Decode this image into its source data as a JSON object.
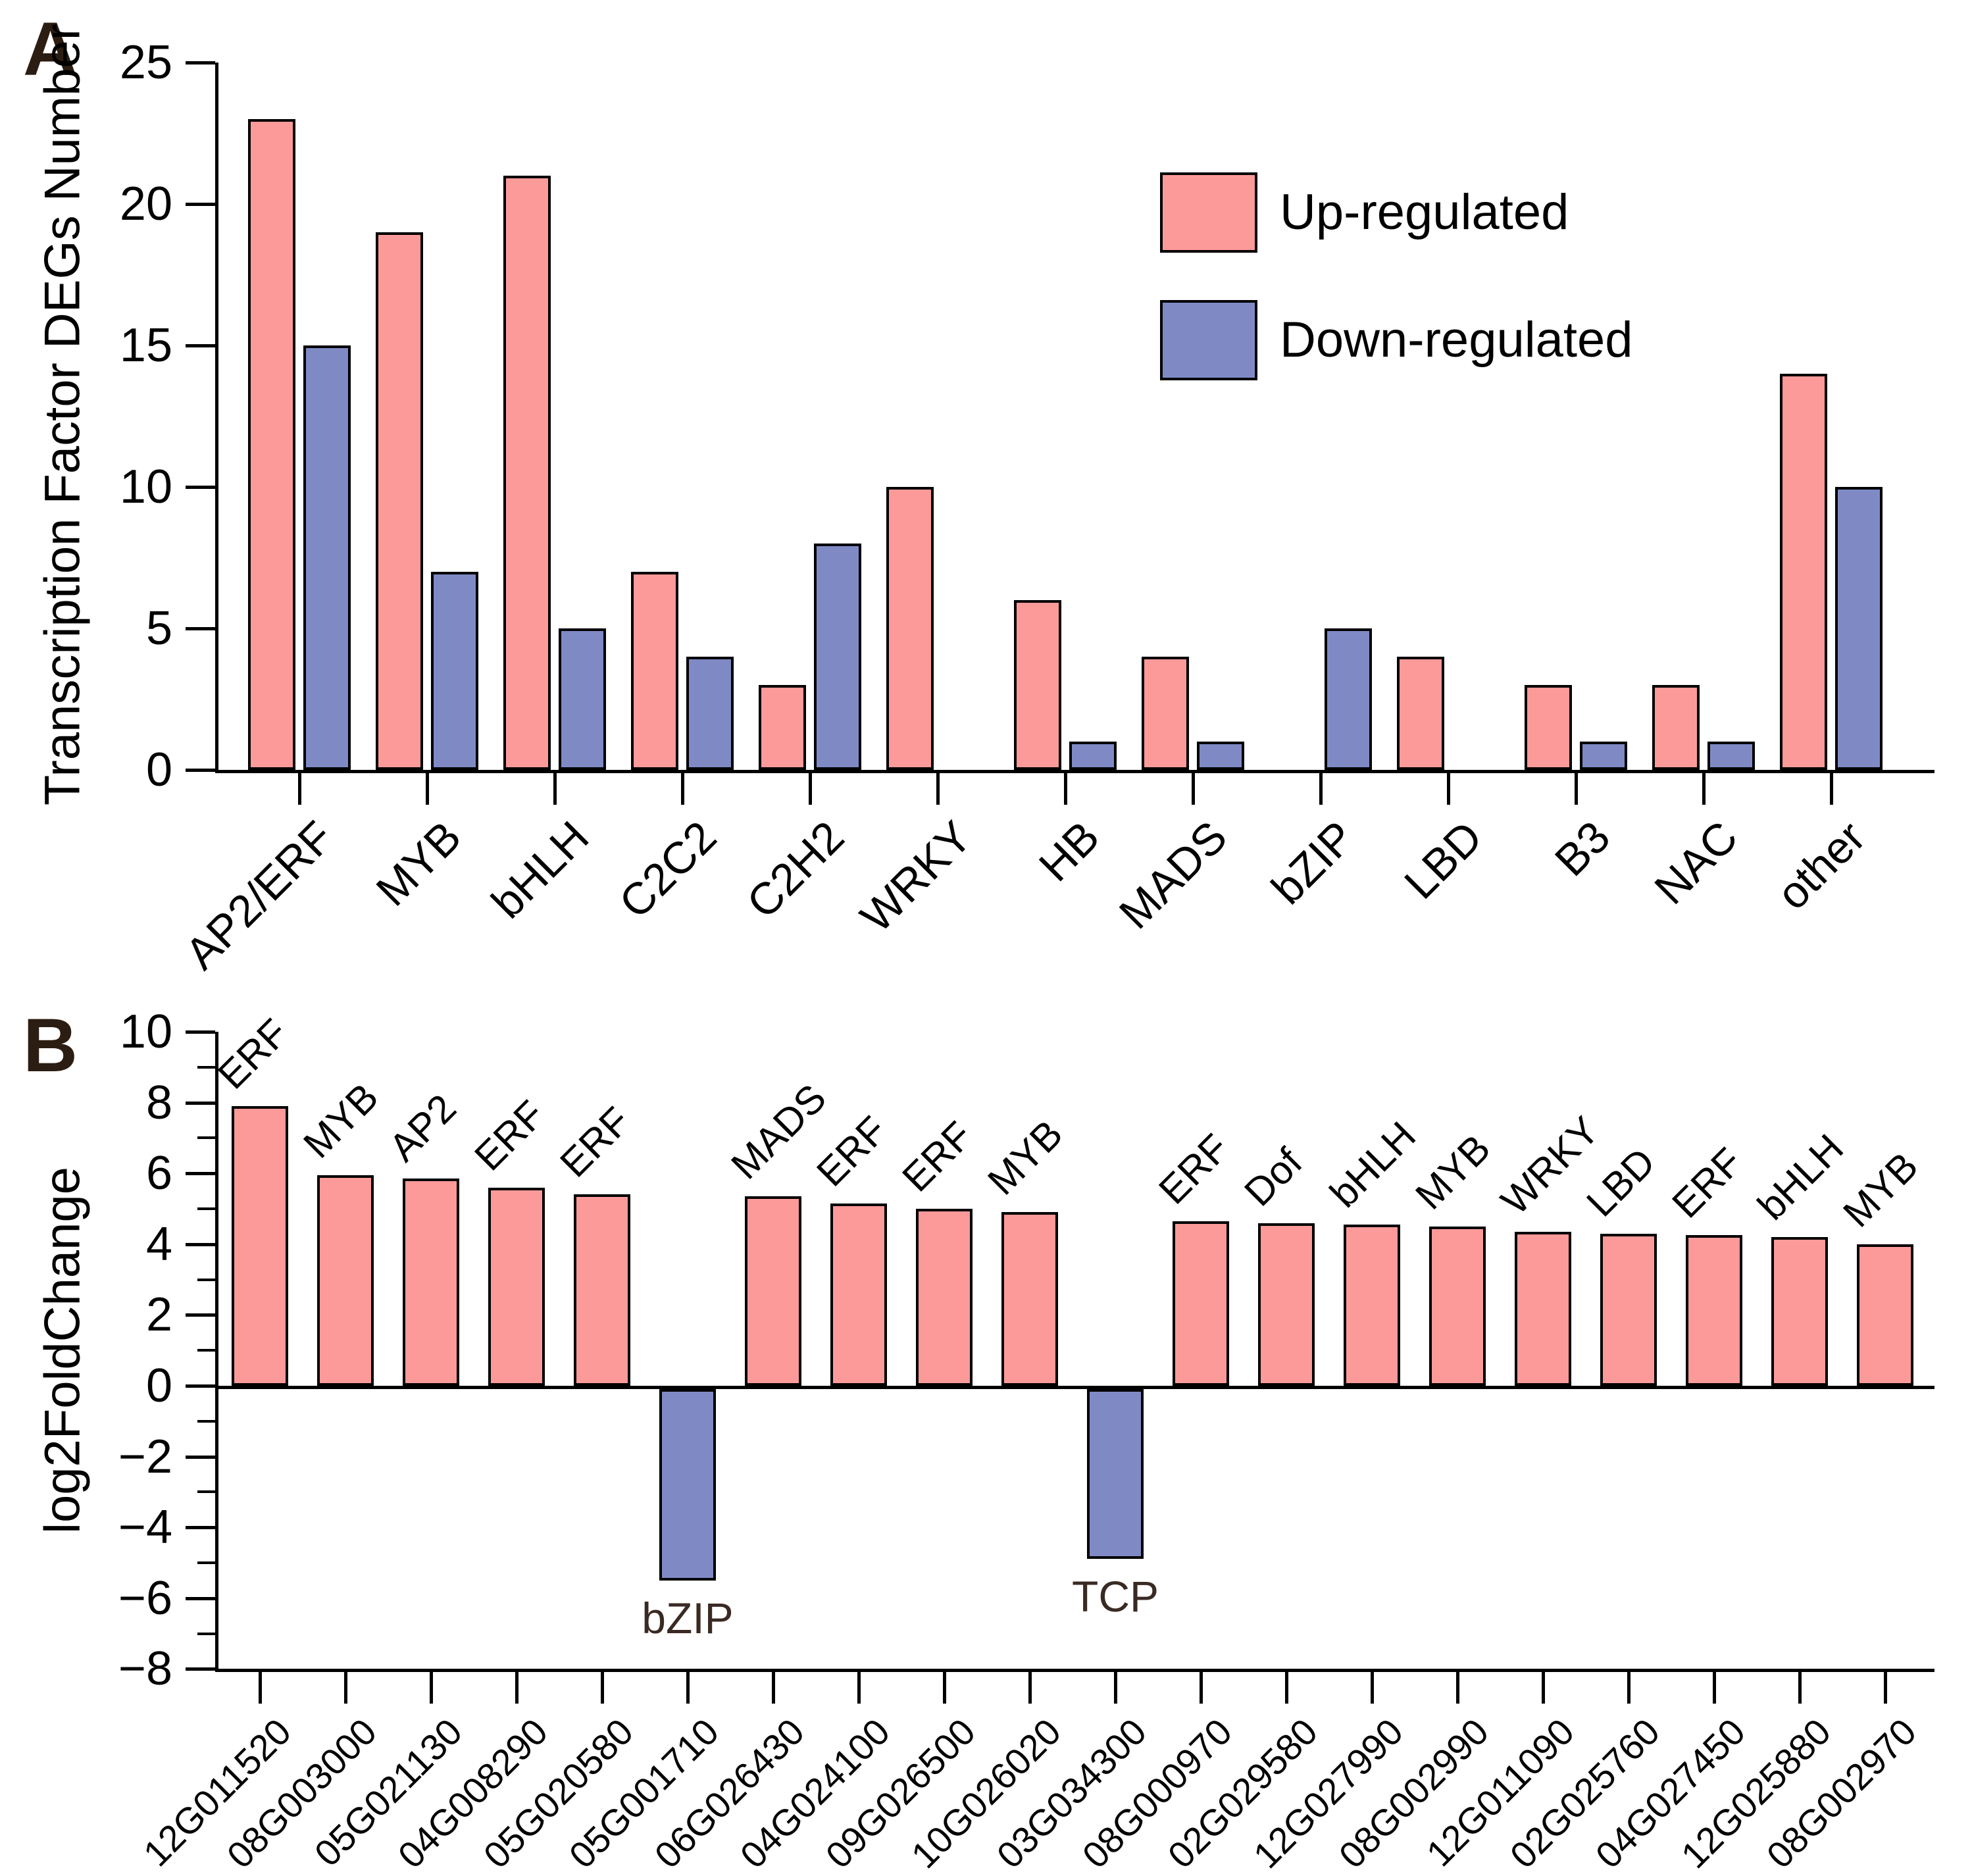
{
  "figure": {
    "panel_a_label": "A",
    "panel_b_label": "B"
  },
  "colors": {
    "up": "#FC9A9A",
    "down": "#7F8AC5",
    "bar_outline": "#000000",
    "panel_letter": "#2C1D12",
    "annotation": "#3A2A24",
    "axis": "#000000"
  },
  "chart_data": [
    {
      "panel": "A",
      "type": "bar",
      "title": "",
      "xlabel": "",
      "ylabel": "Transcription Factor DEGs Number",
      "categories": [
        "AP2/ERF",
        "MYB",
        "bHLH",
        "C2C2",
        "C2H2",
        "WRKY",
        "HB",
        "MADS",
        "bZIP",
        "LBD",
        "B3",
        "NAC",
        "other"
      ],
      "series": [
        {
          "name": "Up-regulated",
          "values": [
            23,
            19,
            21,
            7,
            3,
            10,
            6,
            4,
            0,
            4,
            3,
            3,
            14
          ]
        },
        {
          "name": "Down-regulated",
          "values": [
            15,
            7,
            5,
            4,
            8,
            0,
            1,
            1,
            5,
            0,
            1,
            1,
            10
          ]
        }
      ],
      "ylim": [
        0,
        25
      ],
      "yticks": [
        0,
        5,
        10,
        15,
        20,
        25
      ],
      "grid": false,
      "legend_position": "upper right"
    },
    {
      "panel": "B",
      "type": "bar",
      "title": "",
      "xlabel": "",
      "ylabel": "log2FoldChange",
      "x": [
        "12G011520",
        "08G003000",
        "05G021130",
        "04G008290",
        "05G020580",
        "05G001710",
        "06G026430",
        "04G024100",
        "09G026500",
        "10G026020",
        "03G034300",
        "08G000970",
        "02G029580",
        "12G027990",
        "08G002990",
        "12G011090",
        "02G025760",
        "04G027450",
        "12G025880",
        "08G002970"
      ],
      "bar_labels": [
        "ERF",
        "MYB",
        "AP2",
        "ERF",
        "ERF",
        "bZIP",
        "MADS",
        "ERF",
        "ERF",
        "MYB",
        "TCP",
        "ERF",
        "Dof",
        "bHLH",
        "MYB",
        "WRKY",
        "LBD",
        "ERF",
        "bHLH",
        "MYB"
      ],
      "values": [
        7.9,
        5.95,
        5.85,
        5.6,
        5.4,
        -5.4,
        5.35,
        5.15,
        5.0,
        4.9,
        -4.8,
        4.65,
        4.6,
        4.55,
        4.5,
        4.35,
        4.3,
        4.25,
        4.2,
        4.0
      ],
      "ylim": [
        -8,
        10
      ],
      "yticks": [
        -8,
        -6,
        -4,
        -2,
        0,
        2,
        4,
        6,
        8,
        10
      ],
      "tick_labels": [
        "−8",
        "−6",
        "−4",
        "−2",
        "0",
        "2",
        "4",
        "6",
        "8",
        "10"
      ],
      "minor_tick_step": 1,
      "grid": false
    }
  ]
}
